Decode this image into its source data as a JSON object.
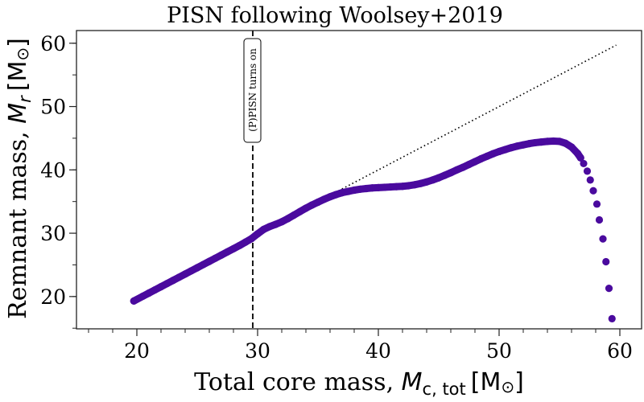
{
  "chart_data": {
    "type": "scatter",
    "title": "PISN following Woolsey+2019",
    "xlabel": {
      "text": "Total core mass, ",
      "math": "M",
      "sub": "c, tot",
      "unit_open": "[M",
      "unit_sym": "⊙",
      "unit_close": "]"
    },
    "ylabel": {
      "text": "Remnant mass, ",
      "math": "M",
      "sub": "r",
      "unit_open": "[M",
      "unit_sym": "⊙",
      "unit_close": "]"
    },
    "xlim": [
      15,
      61.8
    ],
    "ylim": [
      14.9,
      62
    ],
    "xticks": [
      "20",
      "30",
      "40",
      "50",
      "60"
    ],
    "yticks": [
      "20",
      "30",
      "40",
      "50",
      "60"
    ],
    "x_minor_step": 2,
    "y_minor_step": 5,
    "grid": false,
    "marker_color": "#4a0a9e",
    "reference_line": {
      "style": "dotted",
      "color": "#000000",
      "x": [
        19.7,
        59.7
      ],
      "y": [
        19.7,
        59.7
      ]
    },
    "vertical_line": {
      "x": 29.6,
      "style": "dashed",
      "color": "#000000",
      "annotation": "(P)PISN turns on"
    },
    "points": [
      [
        19.75,
        19.3
      ],
      [
        20.5,
        20.05
      ],
      [
        21,
        20.55
      ],
      [
        21.5,
        21.05
      ],
      [
        22,
        21.55
      ],
      [
        22.5,
        22.05
      ],
      [
        23,
        22.55
      ],
      [
        23.5,
        23.05
      ],
      [
        24,
        23.55
      ],
      [
        24.5,
        24.05
      ],
      [
        25,
        24.55
      ],
      [
        25.5,
        25.05
      ],
      [
        26,
        25.55
      ],
      [
        26.5,
        26.05
      ],
      [
        27,
        26.55
      ],
      [
        27.5,
        27.05
      ],
      [
        28,
        27.55
      ],
      [
        28.5,
        28.05
      ],
      [
        29,
        28.6
      ],
      [
        29.5,
        29.15
      ],
      [
        30,
        29.9
      ],
      [
        30.5,
        30.6
      ],
      [
        31,
        31.05
      ],
      [
        31.5,
        31.4
      ],
      [
        32,
        31.8
      ],
      [
        32.5,
        32.3
      ],
      [
        33,
        32.85
      ],
      [
        33.5,
        33.4
      ],
      [
        34,
        33.95
      ],
      [
        34.5,
        34.45
      ],
      [
        35,
        34.9
      ],
      [
        35.5,
        35.35
      ],
      [
        36,
        35.75
      ],
      [
        36.5,
        36.1
      ],
      [
        37,
        36.4
      ],
      [
        37.5,
        36.6
      ],
      [
        38,
        36.8
      ],
      [
        38.5,
        36.95
      ],
      [
        39,
        37.05
      ],
      [
        39.5,
        37.15
      ],
      [
        40,
        37.2
      ],
      [
        40.5,
        37.25
      ],
      [
        41,
        37.3
      ],
      [
        41.5,
        37.35
      ],
      [
        42,
        37.4
      ],
      [
        42.5,
        37.5
      ],
      [
        43,
        37.65
      ],
      [
        43.5,
        37.85
      ],
      [
        44,
        38.1
      ],
      [
        44.5,
        38.4
      ],
      [
        45,
        38.75
      ],
      [
        45.5,
        39.15
      ],
      [
        46,
        39.55
      ],
      [
        46.5,
        40.0
      ],
      [
        47,
        40.4
      ],
      [
        47.5,
        40.85
      ],
      [
        48,
        41.3
      ],
      [
        48.5,
        41.75
      ],
      [
        49,
        42.15
      ],
      [
        49.5,
        42.55
      ],
      [
        50,
        42.9
      ],
      [
        50.5,
        43.2
      ],
      [
        51,
        43.5
      ],
      [
        51.5,
        43.75
      ],
      [
        52,
        43.95
      ],
      [
        52.5,
        44.15
      ],
      [
        53,
        44.3
      ],
      [
        53.5,
        44.4
      ],
      [
        54,
        44.5
      ],
      [
        54.5,
        44.55
      ],
      [
        55,
        44.5
      ],
      [
        55.5,
        44.2
      ],
      [
        56,
        43.6
      ],
      [
        56.5,
        42.6
      ],
      [
        56.75,
        41.9
      ],
      [
        57.0,
        41.0
      ],
      [
        57.3,
        39.8
      ],
      [
        57.55,
        38.4
      ],
      [
        57.8,
        36.7
      ],
      [
        58.1,
        34.6
      ],
      [
        58.3,
        32.1
      ],
      [
        58.6,
        29.1
      ],
      [
        58.85,
        25.5
      ],
      [
        59.1,
        21.3
      ],
      [
        59.35,
        16.5
      ]
    ]
  }
}
